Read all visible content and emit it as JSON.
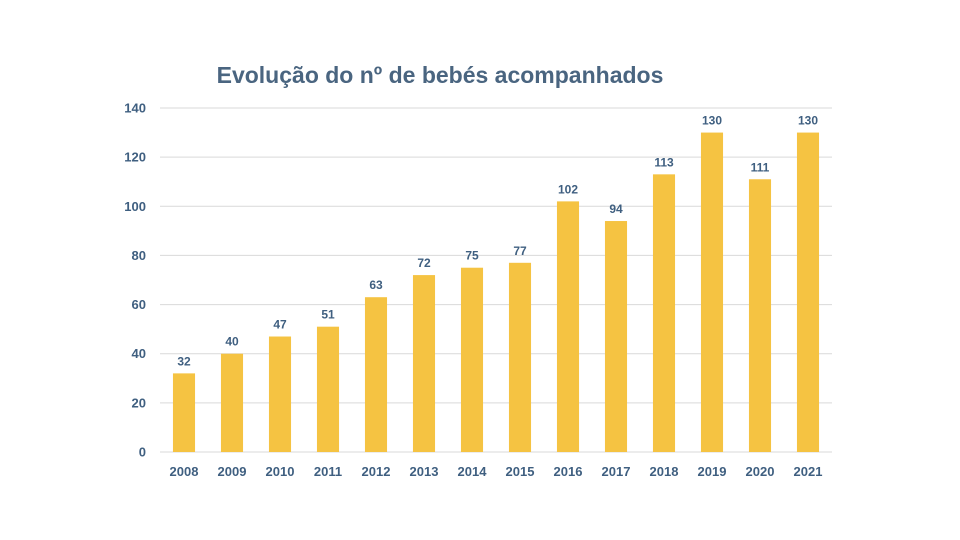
{
  "chart_data": {
    "type": "bar",
    "title": "Evolução do nº de bebés acompanhados",
    "categories": [
      "2008",
      "2009",
      "2010",
      "2011",
      "2012",
      "2013",
      "2014",
      "2015",
      "2016",
      "2017",
      "2018",
      "2019",
      "2020",
      "2021"
    ],
    "values": [
      32,
      40,
      47,
      51,
      63,
      72,
      75,
      77,
      102,
      94,
      113,
      130,
      111,
      130
    ],
    "xlabel": "",
    "ylabel": "",
    "ylim": [
      0,
      140
    ],
    "yticks": [
      0,
      20,
      40,
      60,
      80,
      100,
      120,
      140
    ],
    "grid": true,
    "legend": "none",
    "colors": {
      "bar": "#f5c342",
      "text": "#3f5f80",
      "title": "#4a6580",
      "grid": "#d9d9d9"
    }
  }
}
